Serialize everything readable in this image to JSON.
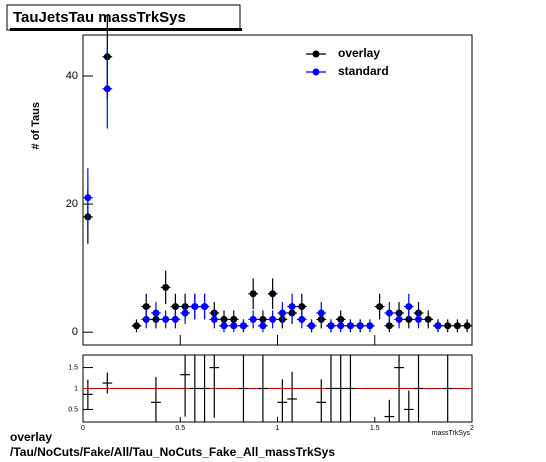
{
  "chart_data": [
    {
      "type": "errorbar",
      "title": "TauJetsTau massTrkSys",
      "ylabel": "# of Taus",
      "x": [
        0.025,
        0.075,
        0.125,
        0.175,
        0.225,
        0.275,
        0.325,
        0.375,
        0.425,
        0.475,
        0.525,
        0.575,
        0.625,
        0.675,
        0.725,
        0.775,
        0.825,
        0.875,
        0.925,
        0.975,
        1.025,
        1.075,
        1.125,
        1.175,
        1.225,
        1.275,
        1.325,
        1.375,
        1.425,
        1.475,
        1.525,
        1.575,
        1.625,
        1.675,
        1.725,
        1.775,
        1.825,
        1.875,
        1.925,
        1.975
      ],
      "series": [
        {
          "name": "overlay",
          "color": "#000000",
          "values": [
            18,
            null,
            43,
            null,
            null,
            1,
            4,
            2,
            7,
            4,
            4,
            4,
            4,
            3,
            2,
            2,
            1,
            6,
            2,
            6,
            2,
            3,
            4,
            1,
            2,
            1,
            2,
            1,
            1,
            null,
            4,
            1,
            3,
            2,
            3,
            2,
            1,
            1,
            1,
            1
          ],
          "errors": [
            4.2,
            null,
            6.6,
            null,
            null,
            1,
            2,
            1.4,
            2.6,
            2,
            2,
            2,
            2,
            1.7,
            1.4,
            1.4,
            1,
            2.4,
            1.4,
            2.4,
            1.4,
            1.7,
            2,
            1,
            1.4,
            1,
            1.4,
            1,
            1,
            null,
            2,
            1,
            1.7,
            1.4,
            1.7,
            1.4,
            1,
            1,
            1,
            1
          ]
        },
        {
          "name": "standard",
          "color": "#0000ff",
          "values": [
            21,
            null,
            38,
            null,
            null,
            null,
            2,
            3,
            2,
            2,
            3,
            4,
            4,
            2,
            1,
            1,
            1,
            2,
            1,
            2,
            3,
            4,
            2,
            1,
            3,
            1,
            1,
            1,
            1,
            1,
            null,
            3,
            2,
            4,
            2,
            null,
            1,
            null,
            null,
            null
          ],
          "errors": [
            4.6,
            null,
            6.2,
            null,
            null,
            null,
            1.4,
            1.7,
            1.4,
            1.4,
            1.7,
            2,
            2,
            1.4,
            1,
            1,
            1,
            1.4,
            1,
            1.4,
            1.7,
            2,
            1.4,
            1,
            1.7,
            1,
            1,
            1,
            1,
            1,
            null,
            1.7,
            1.4,
            2,
            1.4,
            null,
            1,
            null,
            null,
            null
          ]
        }
      ],
      "xlim": [
        0,
        2
      ],
      "ylim": [
        -2,
        46.4
      ],
      "yticks": [
        0,
        20,
        40
      ],
      "xticks": [
        0,
        0.5,
        1,
        1.5,
        2
      ],
      "legend": "top-right"
    },
    {
      "type": "ratio",
      "xlabel": "massTrkSys",
      "x": [
        0.025,
        0.075,
        0.125,
        0.175,
        0.225,
        0.275,
        0.325,
        0.375,
        0.425,
        0.475,
        0.525,
        0.575,
        0.625,
        0.675,
        0.725,
        0.775,
        0.825,
        0.875,
        0.925,
        0.975,
        1.025,
        1.075,
        1.125,
        1.175,
        1.225,
        1.275,
        1.325,
        1.375,
        1.425,
        1.475,
        1.525,
        1.575,
        1.625,
        1.675,
        1.725,
        1.775,
        1.825,
        1.875,
        1.925,
        1.975
      ],
      "values": [
        0.86,
        null,
        1.13,
        null,
        null,
        null,
        null,
        0.67,
        null,
        null,
        1.33,
        1.0,
        1.0,
        1.5,
        null,
        null,
        1.0,
        null,
        1.0,
        null,
        0.67,
        0.75,
        null,
        null,
        0.67,
        1.0,
        1.0,
        1.0,
        null,
        null,
        null,
        0.33,
        1.5,
        0.5,
        1.0,
        null,
        null,
        1.0,
        null,
        null
      ],
      "errors": [
        0.35,
        null,
        0.25,
        null,
        null,
        null,
        null,
        0.6,
        null,
        null,
        1.0,
        0.8,
        0.8,
        1.2,
        null,
        null,
        1.4,
        null,
        1.0,
        null,
        0.55,
        0.65,
        null,
        null,
        0.55,
        1.4,
        1.4,
        1.4,
        null,
        null,
        null,
        0.4,
        1.4,
        0.45,
        1.0,
        null,
        null,
        1.4,
        null,
        null
      ],
      "color": "#000000",
      "reference": 1,
      "reference_color": "#cc0000",
      "xlim": [
        0,
        2
      ],
      "ylim": [
        0.2,
        1.8
      ],
      "yticks": [
        0.5,
        1,
        1.5
      ],
      "xticks": [
        0,
        0.5,
        1,
        1.5,
        2
      ]
    }
  ],
  "footer": {
    "line1": "overlay",
    "line2": "/Tau/NoCuts/Fake/All/Tau_NoCuts_Fake_All_massTrkSys"
  }
}
